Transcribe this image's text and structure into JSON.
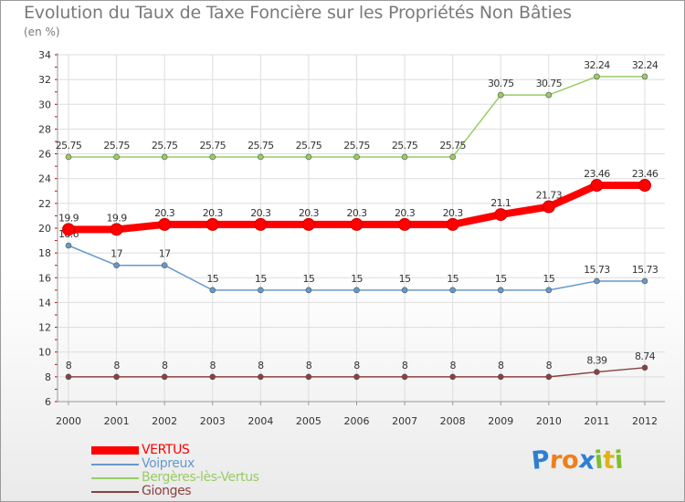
{
  "title": "Evolution du Taux de Taxe Foncière sur les Propriétés Non Bâties",
  "unit_label": "(en %)",
  "brand": {
    "text": "Proxiti",
    "letters": [
      "P",
      "r",
      "o",
      "x",
      "i",
      "t",
      "i"
    ],
    "colors": [
      "#2f7fd1",
      "#f07f1b",
      "#f07f1b",
      "#2f7fd1",
      "#7cbf2f",
      "#e0b21a",
      "#7cbf2f"
    ]
  },
  "chart_data": {
    "type": "line",
    "title": "Evolution du Taux de Taxe Foncière sur les Propriétés Non Bâties",
    "ylabel": "(en %)",
    "xlabel": "",
    "categories": [
      "2000",
      "2001",
      "2002",
      "2003",
      "2004",
      "2005",
      "2006",
      "2007",
      "2008",
      "2009",
      "2010",
      "2011",
      "2012"
    ],
    "ylim": [
      6,
      34
    ],
    "yticks": [
      6,
      8,
      10,
      12,
      14,
      16,
      18,
      20,
      22,
      24,
      26,
      28,
      30,
      32,
      34
    ],
    "grid": true,
    "legend_position": "bottom-left",
    "series": [
      {
        "name": "Bergères-lès-Vertus",
        "color": "#99cc66",
        "values": [
          25.75,
          25.75,
          25.75,
          25.75,
          25.75,
          25.75,
          25.75,
          25.75,
          25.75,
          30.75,
          30.75,
          32.24,
          32.24
        ],
        "labels": [
          "25.75",
          "25.75",
          "25.75",
          "25.75",
          "25.75",
          "25.75",
          "25.75",
          "25.75",
          "25.75",
          "30.75",
          "30.75",
          "32.24",
          "32.24"
        ]
      },
      {
        "name": "Voipreux",
        "color": "#6699cc",
        "values": [
          18.6,
          17,
          17,
          15,
          15,
          15,
          15,
          15,
          15,
          15,
          15,
          15.73,
          15.73
        ],
        "labels": [
          "18.6",
          "17",
          "17",
          "15",
          "15",
          "15",
          "15",
          "15",
          "15",
          "15",
          "15",
          "15.73",
          "15.73"
        ]
      },
      {
        "name": "Gionges",
        "color": "#8b4040",
        "values": [
          8,
          8,
          8,
          8,
          8,
          8,
          8,
          8,
          8,
          8,
          8,
          8.39,
          8.74
        ],
        "labels": [
          "8",
          "8",
          "8",
          "8",
          "8",
          "8",
          "8",
          "8",
          "8",
          "8",
          "8",
          "8.39",
          "8.74"
        ]
      },
      {
        "name": "VERTUS",
        "color": "#ff0000",
        "values": [
          19.9,
          19.9,
          20.3,
          20.3,
          20.3,
          20.3,
          20.3,
          20.3,
          20.3,
          21.1,
          21.73,
          23.46,
          23.46
        ],
        "labels": [
          "19.9",
          "19.9",
          "20.3",
          "20.3",
          "20.3",
          "20.3",
          "20.3",
          "20.3",
          "20.3",
          "21.1",
          "21.73",
          "23.46",
          "23.46"
        ]
      }
    ],
    "legend_order": [
      "VERTUS",
      "Voipreux",
      "Bergères-lès-Vertus",
      "Gionges"
    ]
  }
}
